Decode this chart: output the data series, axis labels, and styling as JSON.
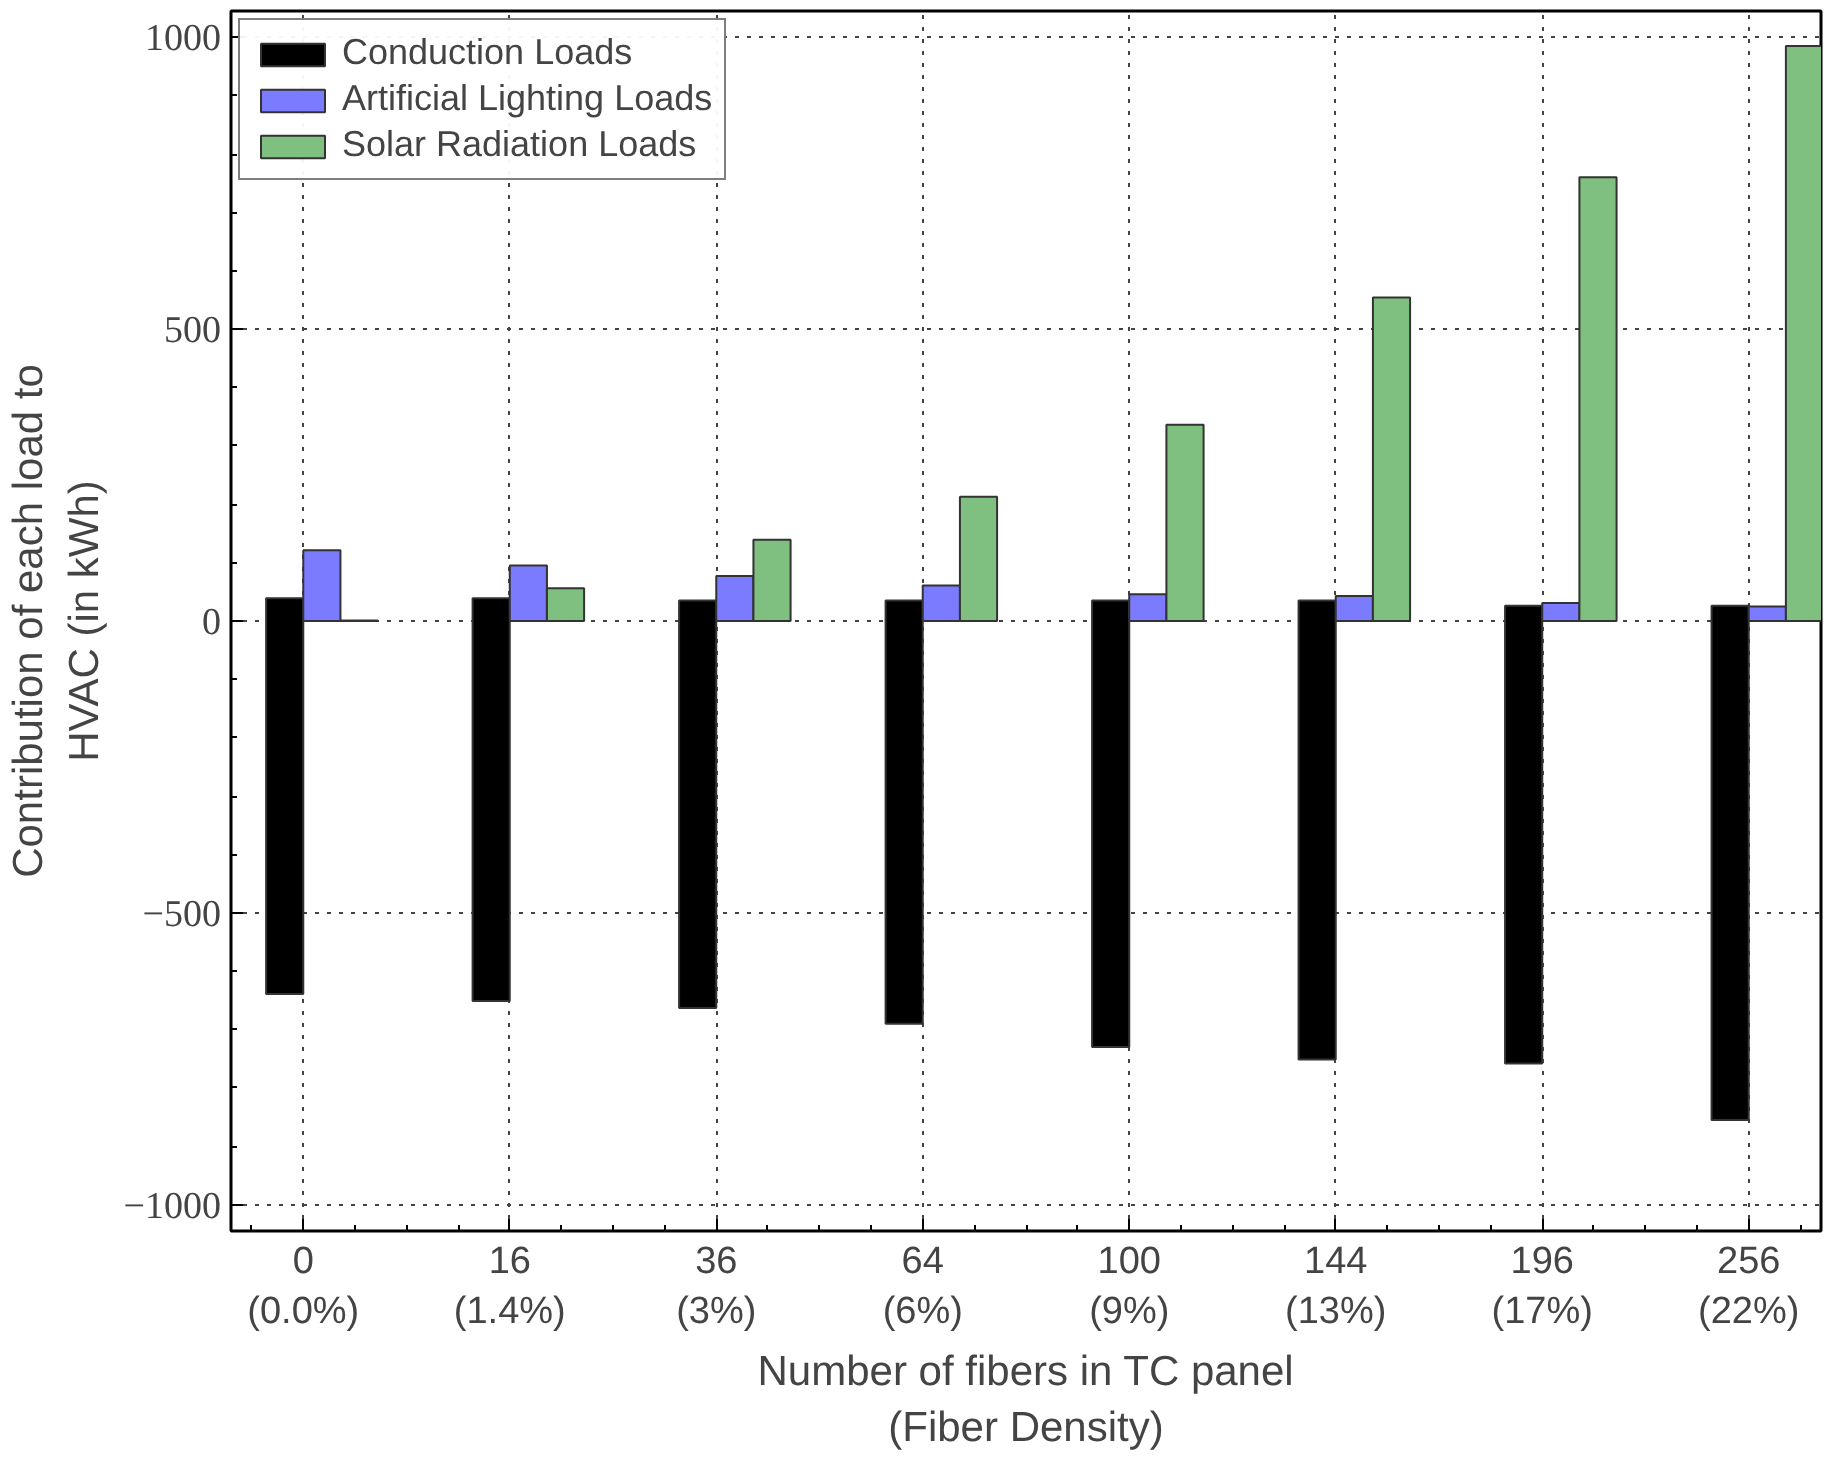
{
  "chart_data": {
    "type": "bar",
    "xlabel": "Number of fibers in TC panel\n(Fiber Density)",
    "ylabel": "Contribution of each load to\nHVAC (in kWh)",
    "categories": [
      "0\n(0.0%)",
      "16\n(1.4%)",
      "36\n(3%)",
      "64\n(6%)",
      "100\n(9%)",
      "144\n(13%)",
      "196\n(17%)",
      "256\n(22%)"
    ],
    "series": [
      {
        "name": "Conduction Loads",
        "color": "#000000",
        "base": [
          -639,
          -651,
          -663,
          -690,
          -730,
          -751,
          -758,
          -855
        ],
        "values": [
          678,
          690,
          698,
          725,
          765,
          786,
          784,
          881
        ]
      },
      {
        "name": "Artificial Lighting Loads",
        "color": "#7b7bff",
        "values": [
          121,
          95,
          77,
          61,
          46,
          43,
          31,
          25
        ]
      },
      {
        "name": "Solar Radiation Loads",
        "color": "#7fbf7f",
        "values": [
          1,
          56,
          139,
          213,
          336,
          554,
          760,
          985
        ]
      }
    ],
    "ylim": [
      -1045,
      1045
    ],
    "yticks": [
      {
        "value": -1000,
        "label": "−1000"
      },
      {
        "value": -500,
        "label": "−500"
      },
      0,
      500,
      1000
    ],
    "grid": true,
    "legend": "top left"
  }
}
